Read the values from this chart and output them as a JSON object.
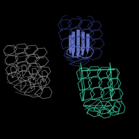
{
  "background_color": "#000000",
  "figsize": [
    2.0,
    2.0
  ],
  "dpi": 100,
  "gray_color": "#909090",
  "teal_color": "#3cc8a0",
  "blue_color": "#6878c8",
  "dark_blue_color": "#303880"
}
